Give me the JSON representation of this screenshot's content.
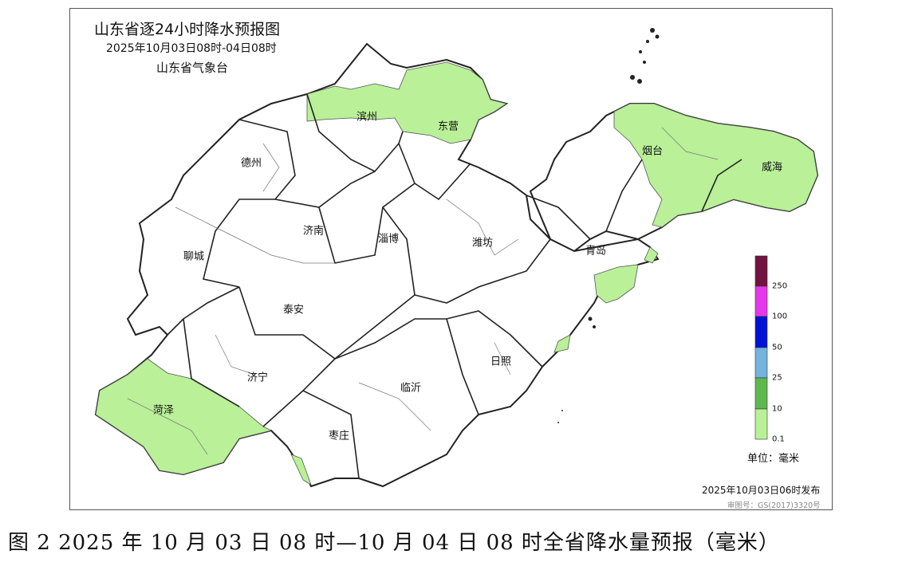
{
  "map": {
    "title": "山东省逐24小时降水预报图",
    "subtitle": "2025年10月03日08时-04日08时",
    "organization": "山东省气象台",
    "cities": [
      "滨州",
      "东营",
      "德州",
      "烟台",
      "威海",
      "济南",
      "淄博",
      "潍坊",
      "聊城",
      "青岛",
      "泰安",
      "日照",
      "济宁",
      "临沂",
      "菏泽",
      "枣庄"
    ],
    "rain_areas": [
      "滨州",
      "东营",
      "烟台",
      "威海",
      "青岛",
      "菏泽"
    ],
    "legend": {
      "unit": "单位：毫米",
      "ticks": [
        "0.1",
        "10",
        "25",
        "50",
        "100",
        "250"
      ],
      "colors": [
        "#b9f098",
        "#5fb84e",
        "#74b4dc",
        "#0012d6",
        "#e637ea",
        "#731440"
      ]
    },
    "issued": "2025年10月03日06时发布",
    "review_number": "审图号：GS(2017)3320号"
  },
  "caption": "图 2  2025 年 10 月 03 日 08 时—10 月 04 日 08 时全省降水量预报（毫米）"
}
